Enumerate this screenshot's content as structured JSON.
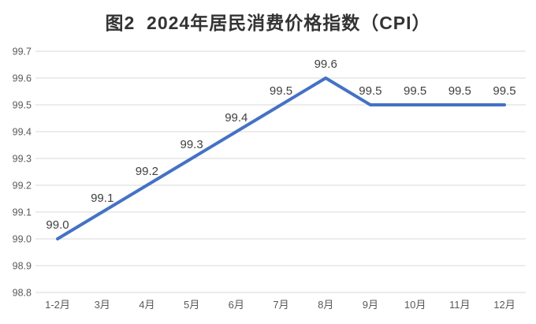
{
  "title": "图2  2024年居民消费价格指数（CPI）",
  "colors": {
    "line": "#4472C4",
    "grid": "#D9D9D9",
    "axis_label": "#595959",
    "data_label": "#404040",
    "title": "#333333",
    "background": "#FFFFFF"
  },
  "chart_data": {
    "type": "line",
    "title": "图2  2024年居民消费价格指数（CPI）",
    "categories": [
      "1-2月",
      "3月",
      "4月",
      "5月",
      "6月",
      "7月",
      "8月",
      "9月",
      "10月",
      "11月",
      "12月"
    ],
    "values": [
      99.0,
      99.1,
      99.2,
      99.3,
      99.4,
      99.5,
      99.6,
      99.5,
      99.5,
      99.5,
      99.5
    ],
    "data_labels": [
      "99.0",
      "99.1",
      "99.2",
      "99.3",
      "99.4",
      "99.5",
      "99.6",
      "99.5",
      "99.5",
      "99.5",
      "99.5"
    ],
    "yticks": [
      "99.7",
      "99.6",
      "99.5",
      "99.4",
      "99.3",
      "99.2",
      "99.1",
      "99.0",
      "98.9",
      "98.8"
    ],
    "ylim": [
      98.8,
      99.7
    ],
    "ytick_step": 0.1,
    "xlabel": "",
    "ylabel": "",
    "grid": "horizontal",
    "legend": "none"
  }
}
